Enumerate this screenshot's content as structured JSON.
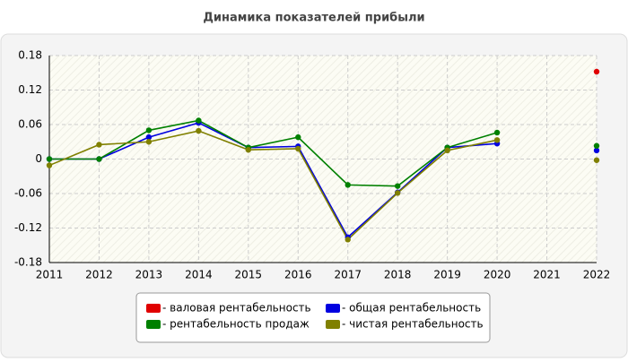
{
  "chart_data": {
    "type": "line",
    "title": "Динамика показателей прибыли",
    "x": [
      2011,
      2012,
      2013,
      2014,
      2015,
      2016,
      2017,
      2018,
      2019,
      2020,
      2021,
      2022
    ],
    "xlim": [
      2011,
      2022
    ],
    "xticks": [
      2011,
      2012,
      2013,
      2014,
      2015,
      2016,
      2017,
      2018,
      2019,
      2020,
      2021,
      2022
    ],
    "ylim": [
      -0.18,
      0.18
    ],
    "yticks": [
      -0.18,
      -0.12,
      -0.06,
      0,
      0.06,
      0.12,
      0.18
    ],
    "grid": true,
    "series": [
      {
        "name": "- валовая рентабельность",
        "color": "#e00000",
        "values": [
          null,
          null,
          null,
          null,
          null,
          null,
          null,
          null,
          null,
          null,
          null,
          0.152
        ]
      },
      {
        "name": "- общая рентабельность",
        "color": "#0000e0",
        "values": [
          0,
          0,
          0.038,
          0.063,
          0.02,
          0.022,
          -0.136,
          -0.058,
          0.02,
          0.027,
          null,
          0.015
        ]
      },
      {
        "name": "- рентабельность продаж",
        "color": "#008000",
        "values": [
          0,
          0,
          0.05,
          0.067,
          0.02,
          0.038,
          -0.045,
          -0.047,
          0.02,
          0.046,
          null,
          0.023
        ]
      },
      {
        "name": "- чистая рентабельность",
        "color": "#808000",
        "values": [
          -0.011,
          0.025,
          0.03,
          0.049,
          0.016,
          0.018,
          -0.14,
          -0.059,
          0.015,
          0.033,
          null,
          -0.002
        ]
      }
    ]
  }
}
